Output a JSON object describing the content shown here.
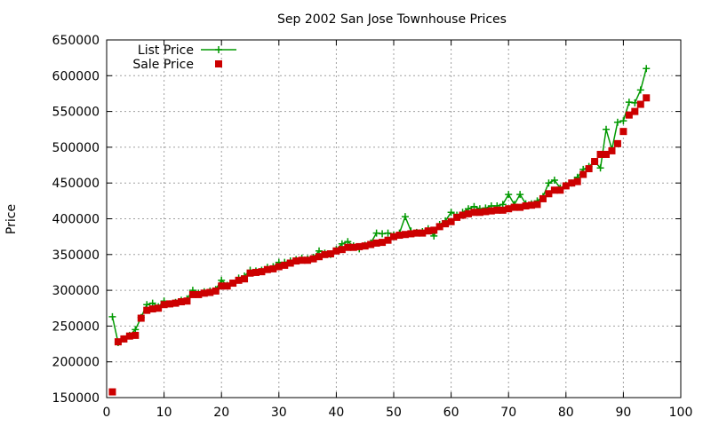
{
  "chart_data": {
    "type": "line",
    "title": "Sep 2002 San Jose Townhouse Prices",
    "xlabel": "",
    "ylabel": "Price",
    "xlim": [
      0,
      100
    ],
    "ylim": [
      150000,
      650000
    ],
    "x_ticks": [
      0,
      10,
      20,
      30,
      40,
      50,
      60,
      70,
      80,
      90,
      100
    ],
    "y_ticks": [
      150000,
      200000,
      250000,
      300000,
      350000,
      400000,
      450000,
      500000,
      550000,
      600000,
      650000
    ],
    "grid": true,
    "legend_position": "top-left",
    "series": [
      {
        "name": "List Price",
        "color": "#009900",
        "style": "line-plus",
        "x": [
          1,
          2,
          3,
          4,
          5,
          6,
          7,
          8,
          9,
          10,
          11,
          12,
          13,
          14,
          15,
          16,
          17,
          18,
          19,
          20,
          21,
          22,
          23,
          24,
          25,
          26,
          27,
          28,
          29,
          30,
          31,
          32,
          33,
          34,
          35,
          36,
          37,
          38,
          39,
          40,
          41,
          42,
          43,
          44,
          45,
          46,
          47,
          48,
          49,
          50,
          51,
          52,
          53,
          54,
          55,
          56,
          57,
          58,
          59,
          60,
          61,
          62,
          63,
          64,
          65,
          66,
          67,
          68,
          69,
          70,
          71,
          72,
          73,
          74,
          75,
          76,
          77,
          78,
          79,
          80,
          81,
          82,
          83,
          84,
          85,
          86,
          87,
          88,
          89,
          90,
          91,
          92,
          93,
          94
        ],
        "y": [
          263000,
          227000,
          232000,
          237000,
          245000,
          262000,
          280000,
          282000,
          277000,
          285000,
          281000,
          283000,
          286000,
          288000,
          300000,
          296000,
          298000,
          299000,
          301000,
          314000,
          307000,
          310000,
          317000,
          320000,
          328000,
          327000,
          328000,
          332000,
          333000,
          339000,
          339000,
          341000,
          343000,
          345000,
          344000,
          346000,
          355000,
          352000,
          350000,
          357000,
          365000,
          368000,
          362000,
          358000,
          363000,
          366000,
          380000,
          379000,
          380000,
          377000,
          380000,
          403000,
          383000,
          381000,
          382000,
          386000,
          376000,
          392000,
          397000,
          409000,
          405000,
          409000,
          414000,
          417000,
          414000,
          415000,
          418000,
          418000,
          420000,
          434000,
          420000,
          434000,
          421000,
          421000,
          425000,
          431000,
          450000,
          454000,
          443000,
          447000,
          450000,
          458000,
          469000,
          473000,
          480000,
          471000,
          525000,
          497000,
          535000,
          537000,
          563000,
          562000,
          580000,
          610000
        ]
      },
      {
        "name": "Sale Price",
        "color": "#cc0000",
        "style": "square",
        "x": [
          1,
          2,
          3,
          4,
          5,
          6,
          7,
          8,
          9,
          10,
          11,
          12,
          13,
          14,
          15,
          16,
          17,
          18,
          19,
          20,
          21,
          22,
          23,
          24,
          25,
          26,
          27,
          28,
          29,
          30,
          31,
          32,
          33,
          34,
          35,
          36,
          37,
          38,
          39,
          40,
          41,
          42,
          43,
          44,
          45,
          46,
          47,
          48,
          49,
          50,
          51,
          52,
          53,
          54,
          55,
          56,
          57,
          58,
          59,
          60,
          61,
          62,
          63,
          64,
          65,
          66,
          67,
          68,
          69,
          70,
          71,
          72,
          73,
          74,
          75,
          76,
          77,
          78,
          79,
          80,
          81,
          82,
          83,
          84,
          85,
          86,
          87,
          88,
          89,
          90,
          91,
          92,
          93,
          94
        ],
        "y": [
          158000,
          228000,
          232000,
          236000,
          237000,
          261000,
          272000,
          274000,
          275000,
          280000,
          281000,
          282000,
          284000,
          285000,
          294000,
          294000,
          296000,
          297000,
          299000,
          306000,
          306000,
          310000,
          314000,
          316000,
          324000,
          325000,
          326000,
          329000,
          330000,
          333000,
          335000,
          338000,
          341000,
          342000,
          342000,
          344000,
          347000,
          350000,
          351000,
          355000,
          357000,
          360000,
          360000,
          361000,
          362000,
          364000,
          366000,
          367000,
          370000,
          375000,
          377000,
          378000,
          379000,
          380000,
          380000,
          383000,
          384000,
          389000,
          393000,
          396000,
          402000,
          405000,
          407000,
          409000,
          409000,
          410000,
          411000,
          412000,
          412000,
          414000,
          416000,
          416000,
          418000,
          419000,
          420000,
          428000,
          435000,
          440000,
          440000,
          446000,
          450000,
          452000,
          462000,
          470000,
          480000,
          490000,
          490000,
          495000,
          505000,
          522000,
          545000,
          550000,
          560000,
          569000
        ]
      }
    ]
  }
}
